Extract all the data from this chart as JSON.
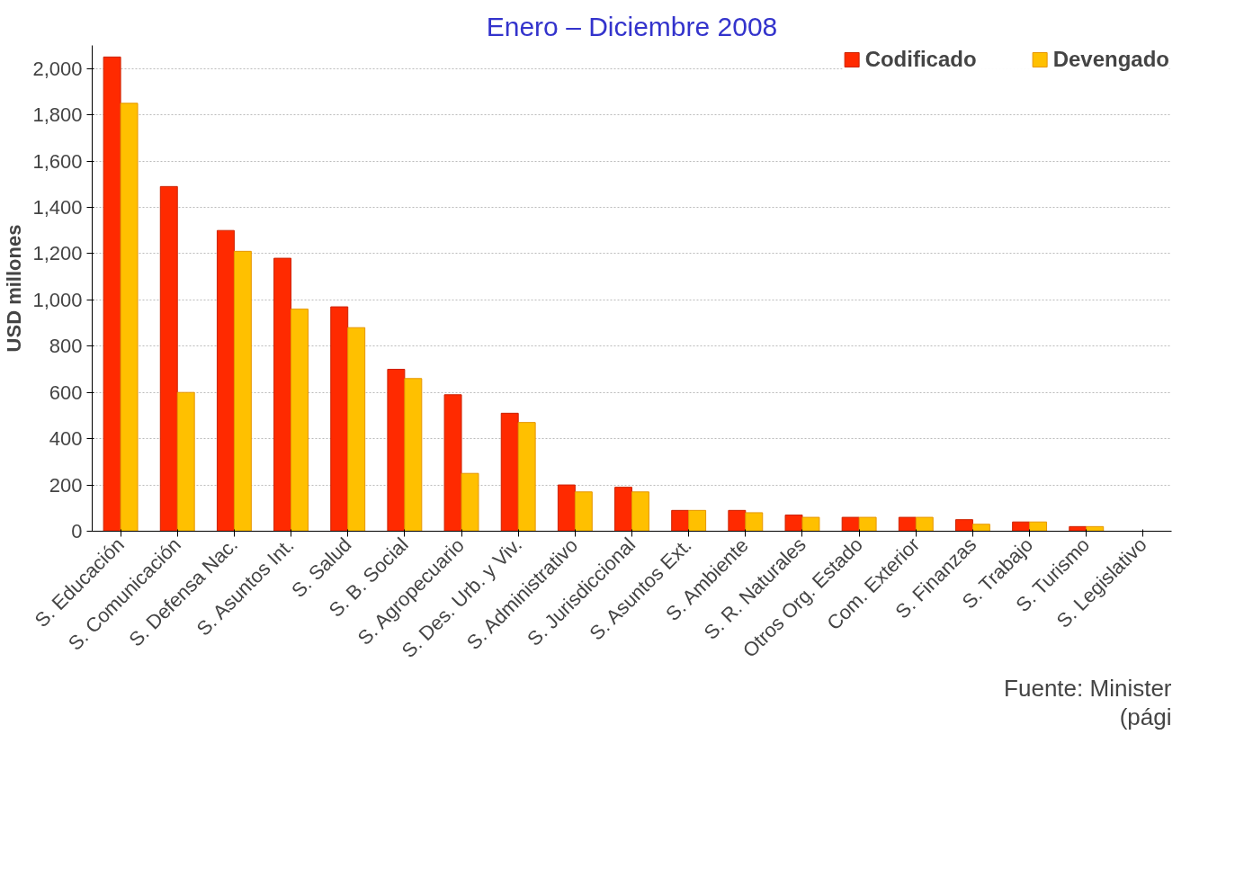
{
  "chart_data": {
    "type": "bar",
    "title": "Enero – Diciembre 2008",
    "ylabel": "USD millones",
    "categories": [
      "S. Educación",
      "S. Comunicación",
      "S. Defensa Nac.",
      "S. Asuntos Int.",
      "S. Salud",
      "S. B. Social",
      "S. Agropecuario",
      "S. Des. Urb. y Viv.",
      "S. Administrativo",
      "S. Jurisdiccional",
      "S. Asuntos Ext.",
      "S. Ambiente",
      "S. R. Naturales",
      "Otros Org. Estado",
      "Com. Exterior",
      "S. Finanzas",
      "S. Trabajo",
      "S. Turismo",
      "S. Legislativo"
    ],
    "series": [
      {
        "name": "Codificado",
        "color": "#ff2a00",
        "values": [
          2050,
          1490,
          1300,
          1180,
          970,
          700,
          590,
          510,
          200,
          190,
          90,
          90,
          70,
          60,
          60,
          50,
          40,
          20,
          null
        ]
      },
      {
        "name": "Devengado",
        "color": "#ffc000",
        "values": [
          1850,
          600,
          1210,
          960,
          880,
          660,
          250,
          470,
          170,
          170,
          90,
          80,
          60,
          60,
          60,
          30,
          40,
          20,
          null
        ]
      }
    ],
    "ylim": [
      0,
      2100
    ],
    "yticks": [
      0,
      200,
      400,
      600,
      800,
      {
        "value": 1000,
        "label": "1,000"
      },
      {
        "value": 1200,
        "label": "1,200"
      },
      {
        "value": 1400,
        "label": "1,400"
      },
      {
        "value": 1600,
        "label": "1,600"
      },
      {
        "value": 1800,
        "label": "1,800"
      },
      {
        "value": 2000,
        "label": "2,000"
      }
    ],
    "grid": "y",
    "legend": "top right",
    "annotations": [
      "Fuente: Minister",
      "(pági"
    ]
  }
}
